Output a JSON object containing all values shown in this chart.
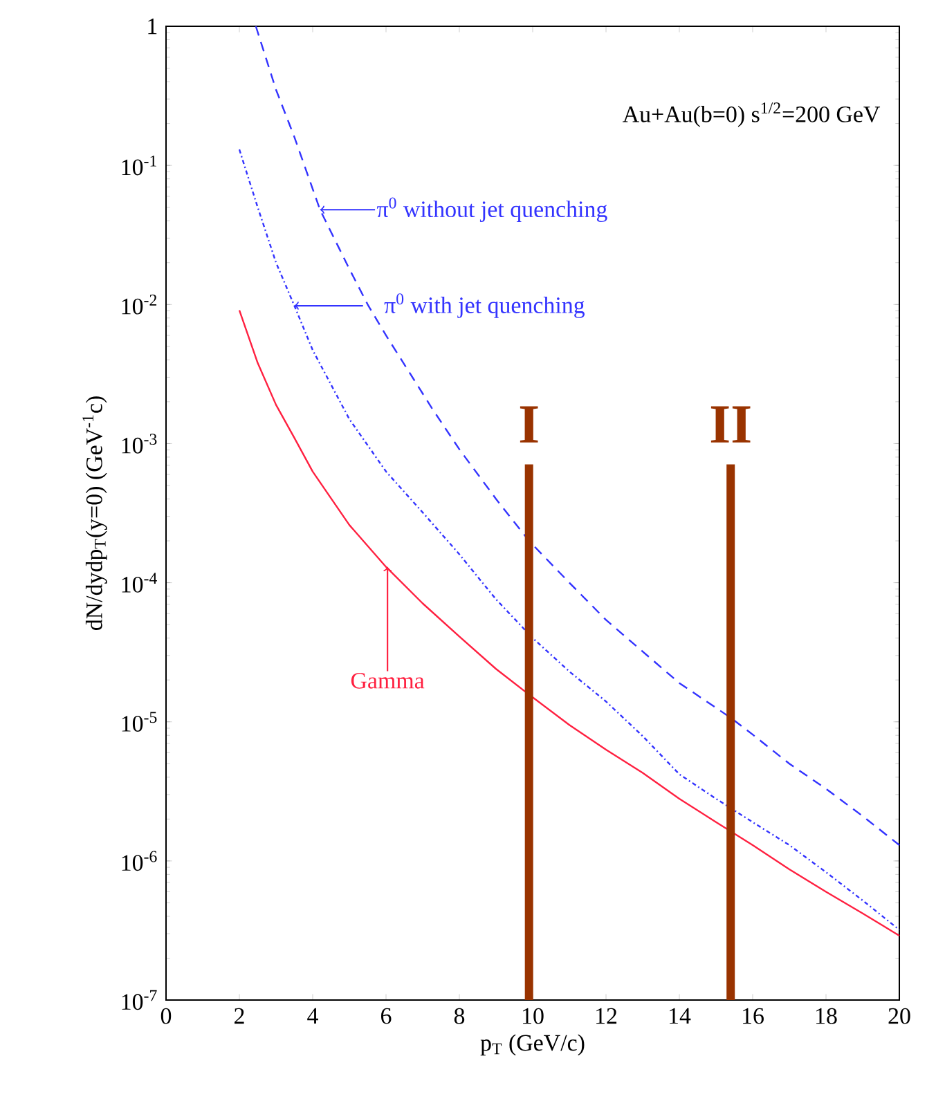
{
  "chart_data": {
    "type": "line",
    "xlabel": "p$_{T}$ (GeV/c)",
    "ylabel": "dN/dydp$_{T}$(y=0) (GeV$^{-1}$c)",
    "x": [
      2,
      2.5,
      3,
      3.5,
      4,
      5,
      6,
      7,
      8,
      9,
      10,
      11,
      12,
      13,
      14,
      15,
      16,
      17,
      18,
      19,
      20
    ],
    "series": [
      {
        "color": "#3333ff",
        "line_style": "dashed",
        "x": [
          2.45,
          3,
          3.5,
          4.2,
          5,
          5.5,
          6,
          7.25,
          8,
          9,
          9.9,
          11,
          12,
          13,
          14,
          15.4,
          16,
          17,
          18,
          19,
          20
        ],
        "values": [
          1.0,
          0.35,
          0.16,
          0.048,
          0.018,
          0.01,
          0.006,
          0.0018,
          0.00091,
          0.0004,
          0.0002,
          0.0001,
          5.4e-05,
          3.2e-05,
          1.9e-05,
          1.07e-05,
          8.1e-06,
          5e-06,
          3.3e-06,
          2.1e-06,
          1.3e-06
        ]
      },
      {
        "color": "#3333ff",
        "line_style": "dotted",
        "values": [
          0.13,
          0.05,
          0.02,
          0.0098,
          0.0047,
          0.0015,
          0.00063,
          0.00032,
          0.00016,
          7.6e-05,
          4e-05,
          2.3e-05,
          1.4e-05,
          7.9e-06,
          4.2e-06,
          2.8e-06,
          1.9e-06,
          1.3e-06,
          8.3e-07,
          5.2e-07,
          3.2e-07
        ]
      },
      {
        "color": "#ff2040",
        "line_style": "solid",
        "values": [
          0.0091,
          0.0038,
          0.0019,
          0.0011,
          0.00063,
          0.00026,
          0.00013,
          7.1e-05,
          4.1e-05,
          2.4e-05,
          1.5e-05,
          9.5e-06,
          6.3e-06,
          4.3e-06,
          2.8e-06,
          1.9e-06,
          1.3e-06,
          8.7e-07,
          6e-07,
          4.2e-07,
          2.9e-07
        ]
      }
    ],
    "annotations": [
      "Au+Au(b=0)   s$^{1/2}$=200 GeV",
      {
        "text": "π$^{0}$ without jet quenching",
        "x": 4.2,
        "y": 0.048
      },
      "π$^{0}$ with jet quenching",
      {
        "text": "Gamma",
        "x": 6.04,
        "y": 0.00013
      }
    ],
    "ref_lines": [
      {
        "axis": "x",
        "value": 9.9,
        "label": "I",
        "color": "#993300"
      },
      {
        "axis": "x",
        "value": 15.4,
        "label": "II",
        "color": "#993300"
      }
    ],
    "log": "y",
    "grid": false,
    "marker": "none",
    "xlim": [
      0,
      20
    ],
    "ylim": [
      1e-07,
      1
    ],
    "xticks": [
      0,
      2,
      4,
      6,
      8,
      10,
      12,
      14,
      16,
      18,
      20
    ],
    "yticks": [
      {
        "value": 1e-07,
        "label": "10$^{-7}$"
      },
      {
        "value": 1e-06,
        "label": "10$^{-6}$"
      },
      {
        "value": 1e-05,
        "label": "10$^{-5}$"
      },
      {
        "value": 0.0001,
        "label": "10$^{-4}$"
      },
      {
        "value": 0.001,
        "label": "10$^{-3}$"
      },
      {
        "value": 0.01,
        "label": "10$^{-2}$"
      },
      {
        "value": 0.1,
        "label": "10$^{-1}$"
      },
      1
    ]
  }
}
